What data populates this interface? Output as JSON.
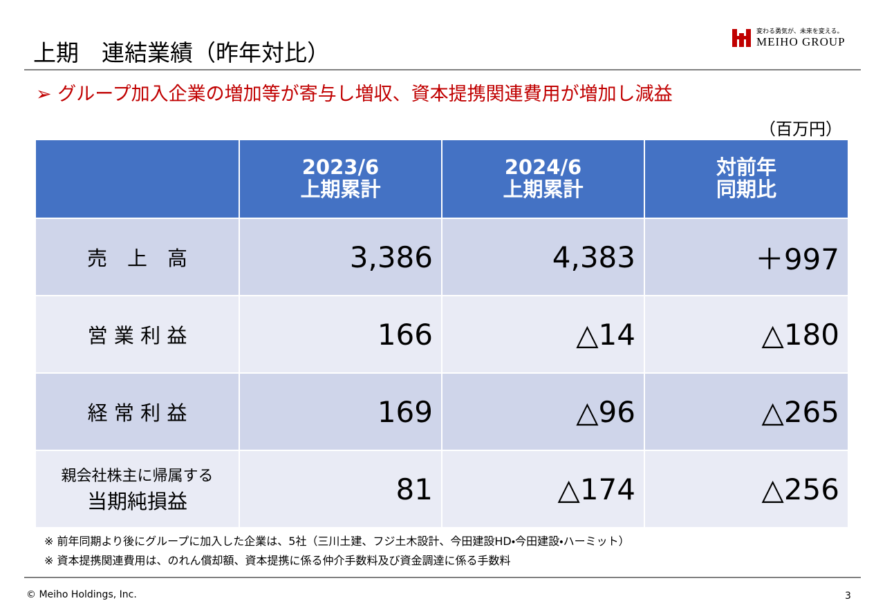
{
  "header": {
    "title": "上期　連結業績（昨年対比）",
    "subtitle": "➢ グループ加入企業の増加等が寄与し増収、資本提携関連費用が増加し減益",
    "logo_tagline": "変わる勇気が、未来を変える。",
    "logo_brand": "MEIHO GROUP"
  },
  "table": {
    "unit": "（百万円）",
    "columns": [
      [
        "2023/6",
        "上期累計"
      ],
      [
        "2024/6",
        "上期累計"
      ],
      [
        "対前年",
        "同期比"
      ]
    ],
    "rows": [
      {
        "label": [
          "売　上　高"
        ],
        "cells": [
          "3,386",
          "4,383",
          "＋997"
        ]
      },
      {
        "label": [
          "営 業 利 益"
        ],
        "cells": [
          "166",
          "△14",
          "△180"
        ]
      },
      {
        "label": [
          "経 常 利 益"
        ],
        "cells": [
          "169",
          "△96",
          "△265"
        ]
      },
      {
        "label": [
          "親会社株主に帰属する",
          "当期純損益"
        ],
        "cells": [
          "81",
          "△174",
          "△256"
        ]
      }
    ]
  },
  "notes": [
    "※ 前年同期より後にグループに加入した企業は、5社（三川土建、フジ土木設計、今田建設HD・今田建設・ハーミット）",
    "※ 資本提携関連費用は、のれん償却額、資本提携に係る仲介手数料及び資金調達に係る手数料"
  ],
  "footer": {
    "copyright": "© Meiho Holdings, Inc.",
    "page": "3"
  }
}
